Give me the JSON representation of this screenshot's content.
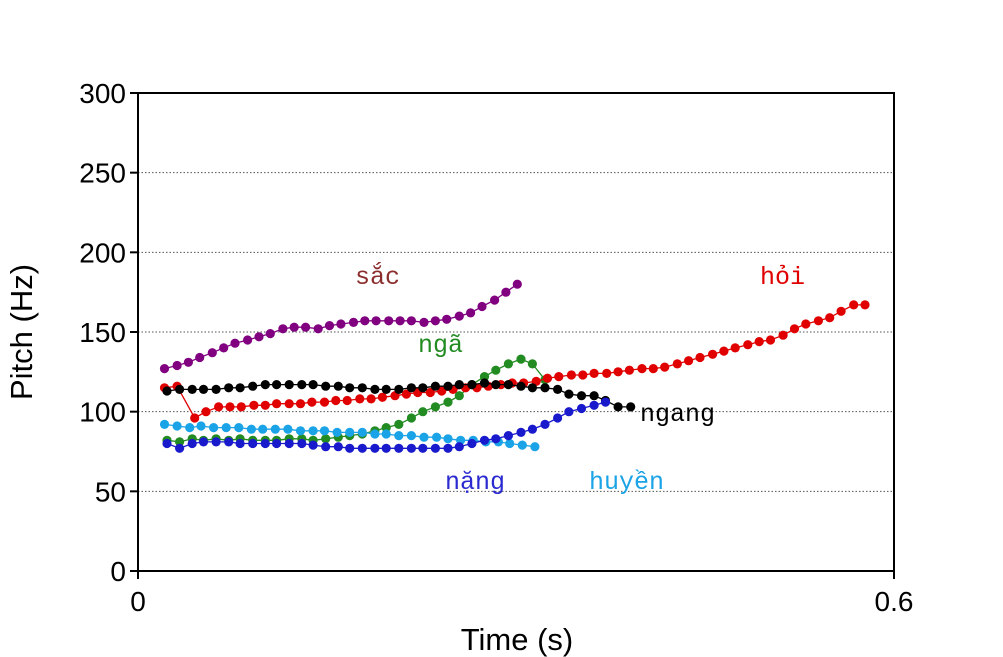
{
  "chart_data": {
    "type": "line",
    "title": "",
    "xlabel": "Time (s)",
    "ylabel": "Pitch (Hz)",
    "xlim": [
      0,
      0.6
    ],
    "ylim": [
      0,
      300
    ],
    "xticks": [
      "0",
      "0.6"
    ],
    "yticks": [
      "0",
      "50",
      "100",
      "150",
      "200",
      "250",
      "300"
    ],
    "ytick_values": [
      0,
      50,
      100,
      150,
      200,
      250,
      300
    ],
    "xtick_values": [
      0,
      0.6
    ],
    "grid": "horizontal dotted",
    "legend": "none (labels placed next to curves)",
    "series": [
      {
        "name": "sắc",
        "color": "#800080",
        "label_color": "#8b2d2d",
        "x": [
          0.021,
          0.031,
          0.04,
          0.049,
          0.059,
          0.068,
          0.077,
          0.087,
          0.096,
          0.105,
          0.115,
          0.124,
          0.133,
          0.143,
          0.152,
          0.161,
          0.171,
          0.18,
          0.189,
          0.199,
          0.208,
          0.217,
          0.227,
          0.236,
          0.245,
          0.255,
          0.264,
          0.273,
          0.283,
          0.292,
          0.301
        ],
        "y": [
          127,
          129,
          131,
          134,
          137,
          140,
          143,
          145,
          147,
          149,
          152,
          153,
          153,
          152,
          154,
          155,
          156,
          157,
          157,
          157,
          157,
          157,
          156,
          157,
          158,
          160,
          162,
          166,
          170,
          175,
          180
        ]
      },
      {
        "name": "hỏi",
        "color": "#e00000",
        "label_color": "#e00000",
        "x": [
          0.021,
          0.031,
          0.045,
          0.054,
          0.064,
          0.073,
          0.082,
          0.092,
          0.101,
          0.11,
          0.12,
          0.129,
          0.138,
          0.148,
          0.157,
          0.166,
          0.176,
          0.185,
          0.194,
          0.204,
          0.213,
          0.222,
          0.232,
          0.241,
          0.25,
          0.26,
          0.269,
          0.278,
          0.288,
          0.297,
          0.306,
          0.316,
          0.325,
          0.334,
          0.344,
          0.353,
          0.362,
          0.372,
          0.381,
          0.39,
          0.4,
          0.409,
          0.418,
          0.428,
          0.437,
          0.446,
          0.456,
          0.465,
          0.474,
          0.484,
          0.493,
          0.502,
          0.512,
          0.521,
          0.53,
          0.54,
          0.549,
          0.558,
          0.568,
          0.577
        ],
        "y": [
          115,
          116,
          96,
          100,
          103,
          103,
          103,
          104,
          104,
          105,
          105,
          105,
          106,
          106,
          107,
          107,
          108,
          108,
          109,
          110,
          111,
          112,
          112,
          113,
          114,
          115,
          115,
          116,
          117,
          118,
          118,
          119,
          121,
          122,
          123,
          123,
          124,
          124,
          125,
          126,
          127,
          127,
          128,
          130,
          132,
          134,
          136,
          138,
          140,
          142,
          144,
          145,
          148,
          152,
          155,
          157,
          159,
          163,
          167,
          167
        ]
      },
      {
        "name": "ngang",
        "color": "#000000",
        "label_color": "#000000",
        "x": [
          0.023,
          0.033,
          0.043,
          0.052,
          0.062,
          0.072,
          0.081,
          0.091,
          0.101,
          0.11,
          0.12,
          0.13,
          0.139,
          0.149,
          0.159,
          0.168,
          0.178,
          0.188,
          0.197,
          0.207,
          0.217,
          0.226,
          0.236,
          0.246,
          0.255,
          0.265,
          0.275,
          0.284,
          0.294,
          0.304,
          0.313,
          0.323,
          0.333,
          0.342,
          0.352,
          0.362,
          0.371,
          0.381,
          0.391
        ],
        "y": [
          113,
          114,
          114,
          114,
          114,
          115,
          115,
          116,
          117,
          117,
          117,
          117,
          117,
          116,
          116,
          115,
          115,
          114,
          114,
          114,
          115,
          115,
          116,
          116,
          117,
          117,
          118,
          117,
          117,
          116,
          115,
          115,
          114,
          111,
          110,
          110,
          107,
          103,
          103
        ]
      },
      {
        "name": "ngã",
        "color": "#228b22",
        "label_color": "#228b22",
        "x": [
          0.023,
          0.033,
          0.043,
          0.052,
          0.062,
          0.072,
          0.081,
          0.091,
          0.101,
          0.11,
          0.12,
          0.13,
          0.139,
          0.149,
          0.159,
          0.168,
          0.178,
          0.188,
          0.197,
          0.207,
          0.217,
          0.226,
          0.236,
          0.246,
          0.255,
          0.265,
          0.275,
          0.284,
          0.294,
          0.304,
          0.313,
          0.323
        ],
        "y": [
          82,
          81,
          83,
          82,
          83,
          82,
          83,
          82,
          82,
          82,
          83,
          83,
          82,
          83,
          84,
          85,
          86,
          88,
          90,
          92,
          96,
          100,
          103,
          106,
          110,
          117,
          122,
          126,
          130,
          133,
          130,
          120
        ]
      },
      {
        "name": "nặng",
        "color": "#1a1acd",
        "label_color": "#2a2ad0",
        "x": [
          0.023,
          0.033,
          0.043,
          0.052,
          0.062,
          0.072,
          0.081,
          0.091,
          0.101,
          0.11,
          0.12,
          0.13,
          0.139,
          0.149,
          0.159,
          0.168,
          0.178,
          0.188,
          0.197,
          0.207,
          0.217,
          0.226,
          0.236,
          0.246,
          0.255,
          0.265,
          0.275,
          0.284,
          0.294,
          0.304,
          0.313,
          0.323,
          0.333,
          0.342,
          0.352,
          0.362,
          0.371
        ],
        "y": [
          80,
          77,
          80,
          81,
          81,
          81,
          80,
          80,
          80,
          80,
          80,
          80,
          79,
          78,
          78,
          77,
          77,
          77,
          77,
          77,
          77,
          77,
          77,
          77,
          78,
          80,
          82,
          83,
          85,
          87,
          89,
          92,
          96,
          100,
          102,
          104,
          106
        ]
      },
      {
        "name": "huyền",
        "color": "#1aa3e6",
        "label_color": "#1aa3e6",
        "x": [
          0.021,
          0.031,
          0.041,
          0.05,
          0.06,
          0.07,
          0.08,
          0.09,
          0.099,
          0.109,
          0.119,
          0.129,
          0.139,
          0.148,
          0.158,
          0.168,
          0.178,
          0.188,
          0.197,
          0.207,
          0.217,
          0.227,
          0.237,
          0.246,
          0.256,
          0.266,
          0.276,
          0.286,
          0.295,
          0.305,
          0.315
        ],
        "y": [
          92,
          91,
          90,
          91,
          90,
          90,
          90,
          89,
          89,
          89,
          89,
          88,
          88,
          88,
          87,
          87,
          87,
          86,
          86,
          85,
          85,
          84,
          84,
          83,
          82,
          82,
          81,
          81,
          80,
          79,
          78
        ]
      }
    ]
  }
}
